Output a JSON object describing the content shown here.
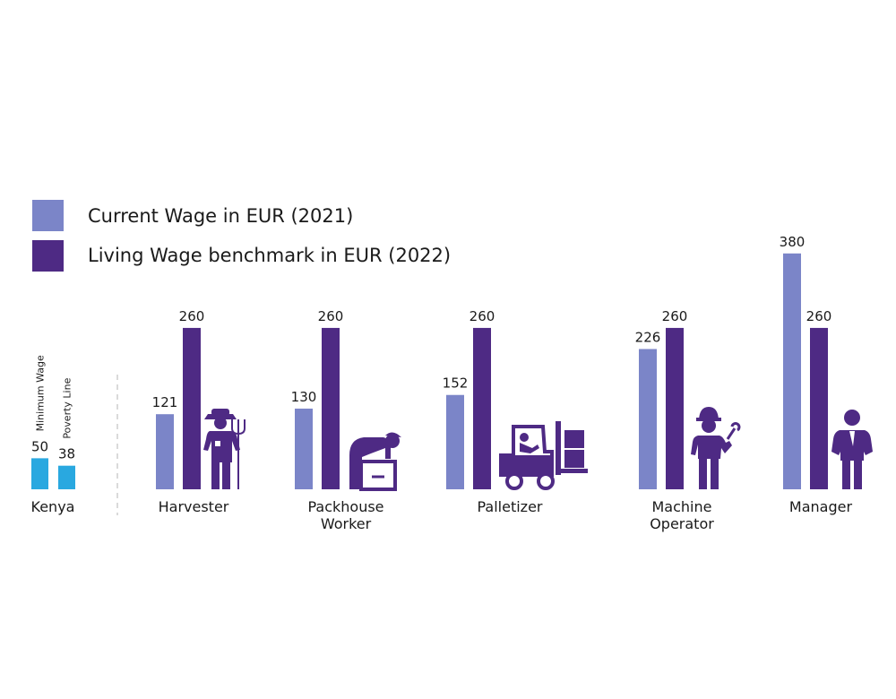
{
  "colors": {
    "current": "#7b85c8",
    "living": "#4e2a84",
    "kenya": "#29a8e0"
  },
  "chart_data": {
    "type": "bar",
    "legend": [
      {
        "key": "current",
        "label": "Current Wage in EUR (2021)"
      },
      {
        "key": "living",
        "label": "Living Wage benchmark in EUR (2022)"
      }
    ],
    "reference": {
      "category": "Kenya",
      "bars": [
        {
          "name": "Minimum Wage",
          "value": 50
        },
        {
          "name": "Poverty Line",
          "value": 38
        }
      ]
    },
    "categories": [
      {
        "label": [
          "Harvester"
        ],
        "icon": "harvester-icon"
      },
      {
        "label": [
          "Packhouse",
          "Worker"
        ],
        "icon": "packhouse-worker-icon"
      },
      {
        "label": [
          "Palletizer"
        ],
        "icon": "forklift-icon"
      },
      {
        "label": [
          "Machine",
          "Operator"
        ],
        "icon": "machine-operator-icon"
      },
      {
        "label": [
          "Manager"
        ],
        "icon": "manager-icon"
      }
    ],
    "series": [
      {
        "key": "current",
        "values": [
          121,
          130,
          152,
          226,
          380
        ]
      },
      {
        "key": "living",
        "values": [
          260,
          260,
          260,
          260,
          260
        ]
      }
    ]
  }
}
